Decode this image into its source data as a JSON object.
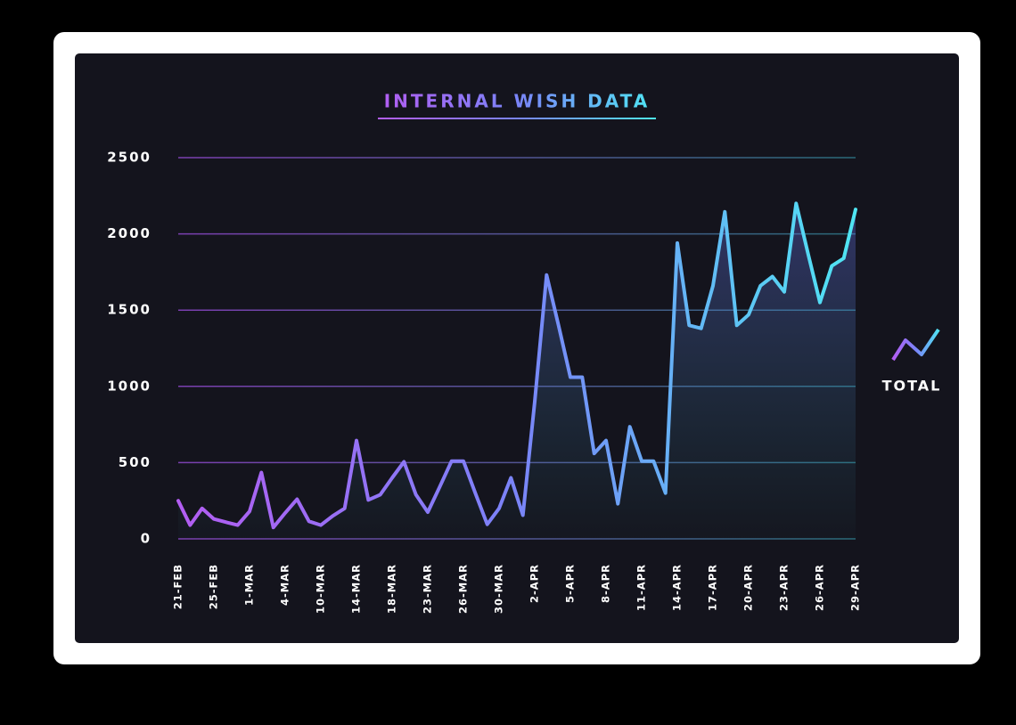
{
  "chart_data": {
    "type": "line",
    "title": "INTERNAL WISH DATA",
    "categories": [
      "21-FEB",
      null,
      null,
      "25-FEB",
      null,
      null,
      "1-MAR",
      null,
      null,
      "4-MAR",
      null,
      null,
      "10-MAR",
      null,
      null,
      "14-MAR",
      null,
      null,
      "18-MAR",
      null,
      null,
      "23-MAR",
      null,
      null,
      "26-MAR",
      null,
      null,
      "30-MAR",
      null,
      null,
      "2-APR",
      null,
      null,
      "5-APR",
      null,
      null,
      "8-APR",
      null,
      null,
      "11-APR",
      null,
      null,
      "14-APR",
      null,
      null,
      "17-APR",
      null,
      null,
      "20-APR",
      null,
      null,
      "23-APR",
      null,
      null,
      "26-APR",
      null,
      null,
      "29-APR"
    ],
    "series": [
      {
        "name": "TOTAL",
        "colors": [
          "#b35df2",
          "#7a84f8",
          "#4fe6f3"
        ],
        "values": [
          250,
          90,
          200,
          130,
          110,
          90,
          180,
          435,
          75,
          170,
          260,
          115,
          90,
          150,
          200,
          645,
          255,
          290,
          400,
          505,
          290,
          175,
          340,
          510,
          510,
          300,
          95,
          200,
          400,
          155,
          900,
          1730,
          1400,
          1060,
          1060,
          560,
          645,
          230,
          735,
          510,
          510,
          300,
          1940,
          1400,
          1380,
          1660,
          2145,
          1400,
          1470,
          1660,
          1720,
          1620,
          2200,
          1870,
          1550,
          1790,
          1840,
          2160
        ]
      }
    ],
    "ylim": [
      0,
      2500
    ],
    "yticks": [
      0,
      500,
      1000,
      1500,
      2000,
      2500
    ],
    "grid": true,
    "legend": "right"
  }
}
